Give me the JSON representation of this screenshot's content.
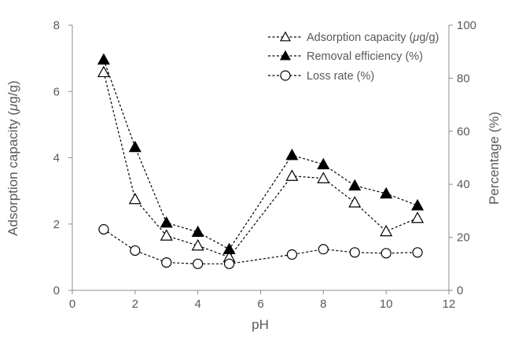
{
  "chart_data": {
    "type": "line",
    "title": "",
    "xlabel": "pH",
    "ylabel_left": "Adsorption capacity (μg/g)",
    "ylabel_right": "Percentage (%)",
    "xlim": [
      0,
      12
    ],
    "ylim_left": [
      0,
      8
    ],
    "ylim_right": [
      0,
      100
    ],
    "x_ticks": [
      0,
      2,
      4,
      6,
      8,
      10,
      12
    ],
    "y_left_ticks": [
      0,
      2,
      4,
      6,
      8
    ],
    "y_right_ticks": [
      0,
      20,
      40,
      60,
      80,
      100
    ],
    "grid": false,
    "legend_position": "top-right",
    "x": [
      1,
      2,
      3,
      4,
      5,
      7,
      8,
      9,
      10,
      11
    ],
    "series": [
      {
        "name": "Adsorption capacity (μg/g)",
        "legend_label": "Adsorption capacity (",
        "legend_unit_italic": "μ",
        "legend_unit_rest": "g/g)",
        "axis": "left",
        "marker": "open-triangle",
        "values": [
          6.58,
          2.75,
          1.65,
          1.35,
          1.0,
          3.45,
          3.38,
          2.65,
          1.78,
          2.18
        ]
      },
      {
        "name": "Removal efficiency (%)",
        "legend_label": "Removal efficiency (%)",
        "axis": "right",
        "marker": "filled-triangle",
        "values": [
          87,
          54,
          25.5,
          22,
          15.5,
          51,
          47.5,
          39.5,
          36.5,
          32
        ]
      },
      {
        "name": "Loss rate (%)",
        "legend_label": "Loss rate (%)",
        "axis": "right",
        "marker": "open-circle",
        "values": [
          23,
          15,
          10.5,
          10,
          10,
          13.5,
          15.5,
          14.3,
          14,
          14.3
        ]
      }
    ],
    "colors": {
      "line": "#000000",
      "axis": "#8c8c8c",
      "text": "#595959"
    }
  }
}
